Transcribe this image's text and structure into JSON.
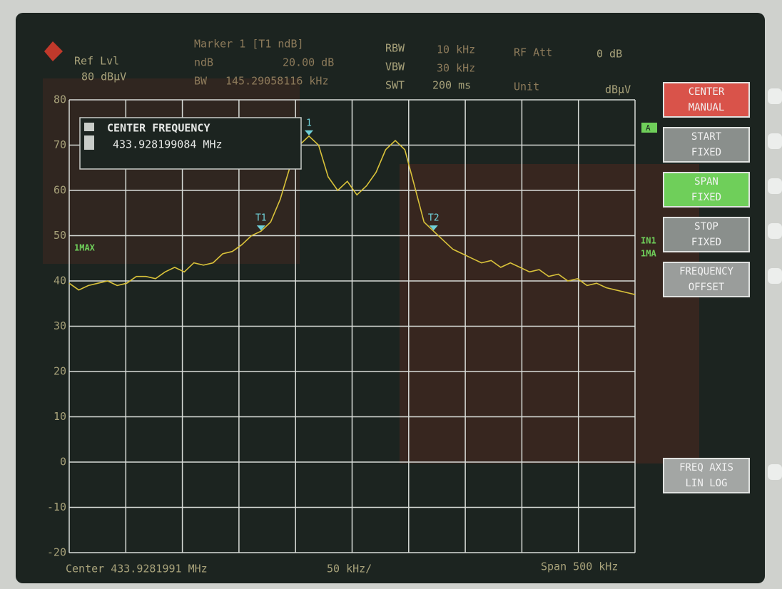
{
  "header": {
    "ref_label": "Ref Lvl",
    "ref_value": "80 dBµV",
    "marker": "Marker 1 [T1 ndB]",
    "ndb_label": "ndB",
    "ndb_value": "20.00 dB",
    "bw_label": "BW",
    "bw_value": "145.29058116 kHz",
    "rbw_label": "RBW",
    "rbw_value": "10 kHz",
    "vbw_label": "VBW",
    "vbw_value": "30 kHz",
    "swt_label": "SWT",
    "swt_value": "200 ms",
    "att_label": "RF Att",
    "att_value": "0 dB",
    "unit_label": "Unit",
    "unit_value": "dBµV"
  },
  "entry_box": {
    "title": "CENTER FREQUENCY",
    "value": "433.928199084 MHz"
  },
  "side_labels": {
    "trace": "1MAX",
    "a": "A",
    "in": "IN1",
    "ma": "1MA"
  },
  "chart_data": {
    "type": "line",
    "color": "#d9c23a",
    "ylim": [
      -20,
      80
    ],
    "yticks": [
      -20,
      -10,
      0,
      10,
      20,
      30,
      40,
      50,
      60,
      70,
      80
    ],
    "grid": true,
    "values": [
      39.5,
      38,
      39,
      39.5,
      40,
      39,
      39.5,
      41,
      41,
      40.5,
      42,
      43,
      42,
      44,
      43.5,
      44,
      46,
      46.5,
      48,
      50,
      51,
      53,
      58,
      65,
      70,
      72,
      70,
      63,
      60,
      62,
      59,
      61,
      64,
      69,
      71,
      69,
      61,
      53,
      51,
      49,
      47,
      46,
      45,
      44,
      44.5,
      43,
      44,
      43,
      42,
      42.5,
      41,
      41.5,
      40,
      40.5,
      39,
      39.5,
      38.5,
      38,
      37.5,
      37
    ],
    "markers": [
      "1",
      "T1",
      "T2"
    ]
  },
  "softkeys": [
    {
      "lines": [
        "CENTER",
        "MANUAL"
      ],
      "color": "#d9534a"
    },
    {
      "lines": [
        "START",
        "FIXED"
      ],
      "color": "#8a8f8c"
    },
    {
      "lines": [
        "SPAN",
        "FIXED"
      ],
      "color": "#6fcf5a"
    },
    {
      "lines": [
        "STOP",
        "FIXED"
      ],
      "color": "#8a8f8c"
    },
    {
      "lines": [
        "FREQUENCY",
        "OFFSET"
      ],
      "color": "#9a9d9b"
    },
    {
      "lines": [
        "FREQ AXIS",
        "LIN  LOG"
      ],
      "color": "#a3a6a4"
    }
  ],
  "footer": {
    "center": "Center 433.9281991 MHz",
    "div": "50 kHz/",
    "span": "Span 500 kHz"
  }
}
